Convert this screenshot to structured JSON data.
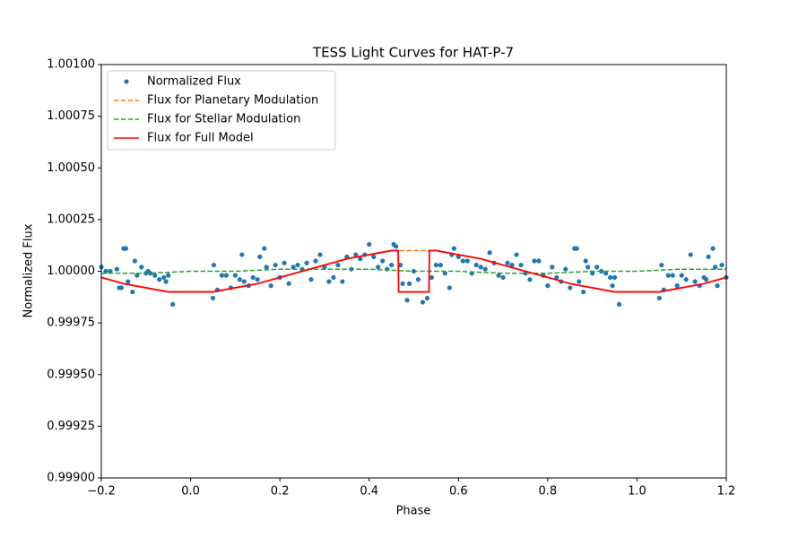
{
  "chart_data": {
    "type": "line",
    "title": "TESS Light Curves for HAT-P-7",
    "x_label": "Phase",
    "y_label": "Normalized Flux",
    "xlim": [
      -0.2,
      1.2
    ],
    "ylim": [
      0.999,
      1.001
    ],
    "xticks": [
      {
        "value": -0.2,
        "label": "−0.2"
      },
      {
        "value": 0,
        "label": "0.0"
      },
      0.2,
      0.4,
      0.6,
      0.8,
      {
        "value": 1,
        "label": "1.0"
      },
      1.2
    ],
    "yticks": [
      {
        "value": 0.999,
        "label": "0.99900"
      },
      {
        "value": 0.99925,
        "label": "0.99925"
      },
      {
        "value": 0.9995,
        "label": "0.99950"
      },
      {
        "value": 0.99975,
        "label": "0.99975"
      },
      {
        "value": 1,
        "label": "1.00000"
      },
      {
        "value": 1.00025,
        "label": "1.00025"
      },
      {
        "value": 1.0005,
        "label": "1.00050"
      },
      {
        "value": 1.00075,
        "label": "1.00075"
      },
      {
        "value": 1.001,
        "label": "1.00100"
      }
    ],
    "grid": false,
    "legend": "upper left",
    "series": [
      {
        "name": "Normalized Flux",
        "type": "scatter",
        "color": "#1f77b4",
        "x": [
          -0.2,
          -0.19,
          -0.18,
          -0.165,
          -0.16,
          -0.155,
          -0.15,
          -0.145,
          -0.14,
          -0.13,
          -0.125,
          -0.12,
          -0.11,
          -0.1,
          -0.095,
          -0.09,
          -0.08,
          -0.07,
          -0.06,
          -0.055,
          -0.05,
          -0.04,
          0.05,
          0.052,
          0.06,
          0.07,
          0.08,
          0.09,
          0.1,
          0.11,
          0.115,
          0.12,
          0.13,
          0.14,
          0.15,
          0.155,
          0.165,
          0.17,
          0.18,
          0.19,
          0.2,
          0.21,
          0.22,
          0.23,
          0.24,
          0.25,
          0.26,
          0.27,
          0.28,
          0.29,
          0.3,
          0.31,
          0.32,
          0.33,
          0.34,
          0.35,
          0.36,
          0.37,
          0.38,
          0.39,
          0.4,
          0.41,
          0.42,
          0.43,
          0.44,
          0.45,
          0.455,
          0.46,
          0.47,
          0.475,
          0.485,
          0.49,
          0.5,
          0.51,
          0.52,
          0.53,
          0.54,
          0.55,
          0.56,
          0.57,
          0.58,
          0.585,
          0.59,
          0.6,
          0.61,
          0.62,
          0.63,
          0.64,
          0.65,
          0.66,
          0.67,
          0.68,
          0.69,
          0.7,
          0.71,
          0.72,
          0.73,
          0.74,
          0.75,
          0.76,
          0.77,
          0.78,
          0.79,
          0.8,
          0.81,
          0.82,
          0.83,
          0.84,
          0.85,
          0.86,
          0.865,
          0.87,
          0.88,
          0.885,
          0.89,
          0.9,
          0.91,
          0.92,
          0.93,
          0.94,
          0.945,
          0.95,
          0.96,
          1.05,
          1.055,
          1.06,
          1.07,
          1.08,
          1.09,
          1.1,
          1.11,
          1.12,
          1.13,
          1.14,
          1.15,
          1.155,
          1.16,
          1.17,
          1.175,
          1.18,
          1.19,
          1.2
        ],
        "values": [
          1.00002,
          1.0,
          1.0,
          1.00001,
          0.99992,
          0.99992,
          1.00011,
          1.00011,
          0.99995,
          0.9999,
          1.00005,
          0.99998,
          1.00002,
          0.99999,
          1.0,
          0.99999,
          0.99998,
          0.99996,
          0.99997,
          0.99995,
          0.99998,
          0.99984,
          0.99987,
          1.00003,
          0.99991,
          0.99998,
          0.99998,
          0.99992,
          0.99998,
          0.99996,
          1.00008,
          0.99995,
          0.99993,
          0.99997,
          0.99996,
          1.00007,
          1.00011,
          1.00002,
          0.99993,
          1.00003,
          0.99997,
          1.00004,
          0.99994,
          1.00002,
          1.00003,
          1.00001,
          1.00004,
          0.99996,
          1.00005,
          1.00008,
          1.00002,
          0.99995,
          0.99997,
          1.00003,
          0.99995,
          1.00007,
          1.00001,
          1.00008,
          1.00006,
          1.00008,
          1.00013,
          1.00007,
          1.00002,
          1.00005,
          1.00001,
          1.00003,
          1.00013,
          1.00012,
          1.00003,
          0.99994,
          0.99986,
          0.99994,
          1.0,
          0.99996,
          0.99985,
          0.99987,
          0.99997,
          1.00003,
          1.00003,
          0.99999,
          0.99992,
          1.00008,
          1.00011,
          1.00007,
          1.00005,
          1.00005,
          0.99999,
          1.00003,
          1.00002,
          1.00001,
          1.00009,
          1.00004,
          0.99998,
          0.99997,
          1.00004,
          1.00003,
          1.00008,
          1.00003,
          0.99999,
          0.99996,
          1.00005,
          1.00005,
          0.99998,
          0.99993,
          1.00002,
          0.99997,
          0.99995,
          1.00001,
          0.99992,
          1.00011,
          1.00011,
          0.99995,
          0.9999,
          1.00005,
          1.00002,
          0.99999,
          1.00002,
          1.0,
          0.99999,
          0.99997,
          0.99993,
          0.99997,
          0.99984,
          0.99987,
          1.00003,
          0.99991,
          0.99998,
          0.99998,
          0.99993,
          0.99998,
          0.99996,
          1.00008,
          0.99995,
          0.99993,
          0.99997,
          0.99996,
          1.00007,
          1.00011,
          1.00002,
          0.99993,
          1.00003,
          0.99997
        ]
      },
      {
        "name": "Flux for Planetary Modulation",
        "type": "line",
        "dash": "dashed",
        "color": "#ff7f0e",
        "x": [
          -0.2,
          -0.15,
          -0.1,
          -0.05,
          0,
          0.05,
          0.1,
          0.15,
          0.2,
          0.25,
          0.3,
          0.35,
          0.4,
          0.45,
          0.5,
          0.55,
          0.6,
          0.65,
          0.7,
          0.75,
          0.8,
          0.85,
          0.9,
          0.95,
          1,
          1.05,
          1.1,
          1.15,
          1.2
        ],
        "values": [
          0.99997,
          0.99994,
          0.99992,
          0.9999,
          0.9999,
          0.9999,
          0.99992,
          0.99994,
          0.99997,
          1.0,
          1.00003,
          1.00006,
          1.00008,
          1.0001,
          1.0001,
          1.0001,
          1.00008,
          1.00006,
          1.00003,
          1.0,
          0.99997,
          0.99994,
          0.99992,
          0.9999,
          0.9999,
          0.9999,
          0.99992,
          0.99994,
          0.99997
        ]
      },
      {
        "name": "Flux for Stellar Modulation",
        "type": "line",
        "dash": "dashed",
        "color": "#2ca02c",
        "x": [
          -0.2,
          -0.1,
          0,
          0.1,
          0.2,
          0.3,
          0.4,
          0.5,
          0.6,
          0.7,
          0.8,
          0.9,
          1,
          1.1,
          1.2
        ],
        "values": [
          0.99999,
          0.99999,
          1.0,
          1.0,
          1.00001,
          1.00001,
          1.00001,
          1.0,
          1.0,
          0.99999,
          0.99999,
          1.0,
          1.0,
          1.00001,
          1.00001
        ]
      },
      {
        "name": "Flux for Full Model",
        "type": "line",
        "dash": "solid",
        "color": "#ff0000",
        "x": [
          -0.2,
          -0.15,
          -0.1,
          -0.05,
          0,
          0.05,
          0.1,
          0.15,
          0.2,
          0.25,
          0.3,
          0.35,
          0.4,
          0.45,
          0.465,
          0.466,
          0.534,
          0.535,
          0.55,
          0.6,
          0.65,
          0.7,
          0.75,
          0.8,
          0.85,
          0.9,
          0.95,
          1,
          1.05,
          1.1,
          1.15,
          1.2
        ],
        "values": [
          0.99997,
          0.99994,
          0.99992,
          0.9999,
          0.9999,
          0.9999,
          0.99992,
          0.99994,
          0.99997,
          1.0,
          1.00003,
          1.00006,
          1.00008,
          1.0001,
          1.0001,
          0.9999,
          0.9999,
          1.0001,
          1.0001,
          1.00008,
          1.00006,
          1.00003,
          1.0,
          0.99997,
          0.99994,
          0.99992,
          0.9999,
          0.9999,
          0.9999,
          0.99992,
          0.99994,
          0.99997
        ]
      }
    ]
  }
}
